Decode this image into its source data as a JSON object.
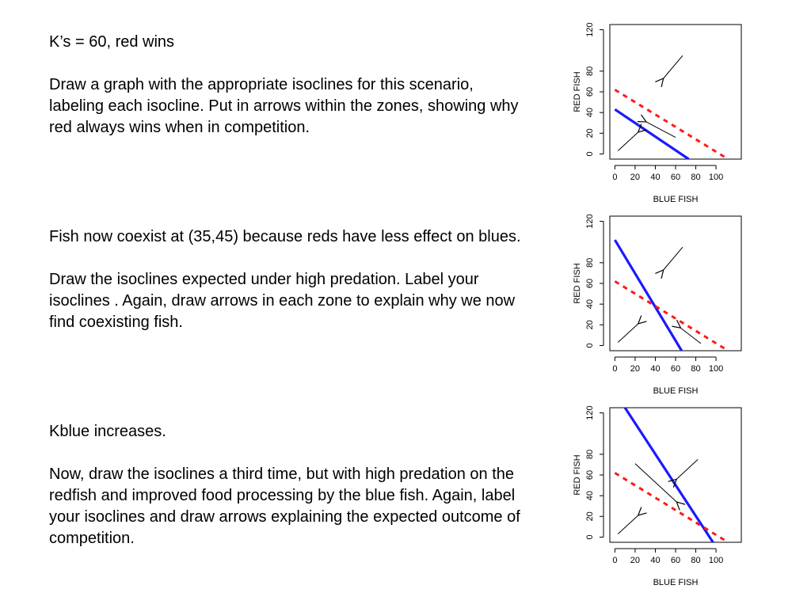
{
  "slide": {
    "blocks": [
      {
        "paragraphs": [
          "K’s = 60, red wins",
          "Draw a graph with the appropriate isoclines for this scenario, labeling each isocline.  Put in arrows within the zones, showing why red always wins when in competition."
        ]
      },
      {
        "paragraphs": [
          "Fish now coexist at (35,45) because reds have less effect on blues.",
          "Draw the isoclines expected under high predation.  Label your isoclines .  Again, draw arrows in each zone to explain why we now find coexisting fish."
        ]
      },
      {
        "paragraphs": [
          "Kblue increases.",
          "Now, draw the isoclines a third time, but with high predation on the redfish and improved food processing by the blue fish.  Again, label your isoclines and draw arrows explaining the expected outcome of competition."
        ]
      }
    ]
  },
  "colors": {
    "blue_isocline": "#1a1aff",
    "red_isocline": "#ff1a1a",
    "axis": "#000000"
  },
  "chart_data": [
    {
      "type": "line",
      "xlabel": "BLUE FISH",
      "ylabel": "RED FISH",
      "xlim": [
        -5,
        125
      ],
      "ylim": [
        -5,
        125
      ],
      "xticks": [
        0,
        20,
        40,
        60,
        80,
        100
      ],
      "yticks": [
        0,
        20,
        40,
        60,
        80,
        120
      ],
      "series": [
        {
          "style": "solid",
          "color": "blue",
          "points": [
            [
              0,
              43
            ],
            [
              73,
              -5
            ]
          ]
        },
        {
          "style": "dashed",
          "color": "red",
          "points": [
            [
              0,
              62
            ],
            [
              112,
              -5
            ]
          ]
        }
      ],
      "arrows": [
        {
          "from": [
            67,
            95
          ],
          "to": [
            48,
            73
          ]
        },
        {
          "from": [
            60,
            16
          ],
          "to": [
            31,
            31
          ]
        },
        {
          "from": [
            3,
            3
          ],
          "to": [
            23,
            21
          ]
        }
      ]
    },
    {
      "type": "line",
      "xlabel": "BLUE FISH",
      "ylabel": "RED FISH",
      "xlim": [
        -5,
        125
      ],
      "ylim": [
        -5,
        125
      ],
      "xticks": [
        0,
        20,
        40,
        60,
        80,
        100
      ],
      "yticks": [
        0,
        20,
        40,
        60,
        80,
        120
      ],
      "series": [
        {
          "style": "solid",
          "color": "blue",
          "points": [
            [
              0,
              102
            ],
            [
              66,
              -5
            ]
          ]
        },
        {
          "style": "dashed",
          "color": "red",
          "points": [
            [
              0,
              62
            ],
            [
              112,
              -5
            ]
          ]
        }
      ],
      "arrows": [
        {
          "from": [
            67,
            95
          ],
          "to": [
            48,
            73
          ]
        },
        {
          "from": [
            3,
            3
          ],
          "to": [
            23,
            21
          ]
        },
        {
          "from": [
            85,
            2
          ],
          "to": [
            65,
            17
          ]
        }
      ]
    },
    {
      "type": "line",
      "xlabel": "BLUE FISH",
      "ylabel": "RED FISH",
      "xlim": [
        -5,
        125
      ],
      "ylim": [
        -5,
        125
      ],
      "xticks": [
        0,
        20,
        40,
        60,
        80,
        100
      ],
      "yticks": [
        0,
        20,
        40,
        60,
        80,
        120
      ],
      "series": [
        {
          "style": "solid",
          "color": "blue",
          "points": [
            [
              10,
              125
            ],
            [
              97,
              -5
            ]
          ]
        },
        {
          "style": "dashed",
          "color": "red",
          "points": [
            [
              0,
              62
            ],
            [
              112,
              -5
            ]
          ]
        }
      ],
      "arrows": [
        {
          "from": [
            82,
            75
          ],
          "to": [
            61,
            56
          ]
        },
        {
          "from": [
            20,
            71
          ],
          "to": [
            61,
            34
          ]
        },
        {
          "from": [
            3,
            3
          ],
          "to": [
            23,
            21
          ]
        }
      ]
    }
  ]
}
